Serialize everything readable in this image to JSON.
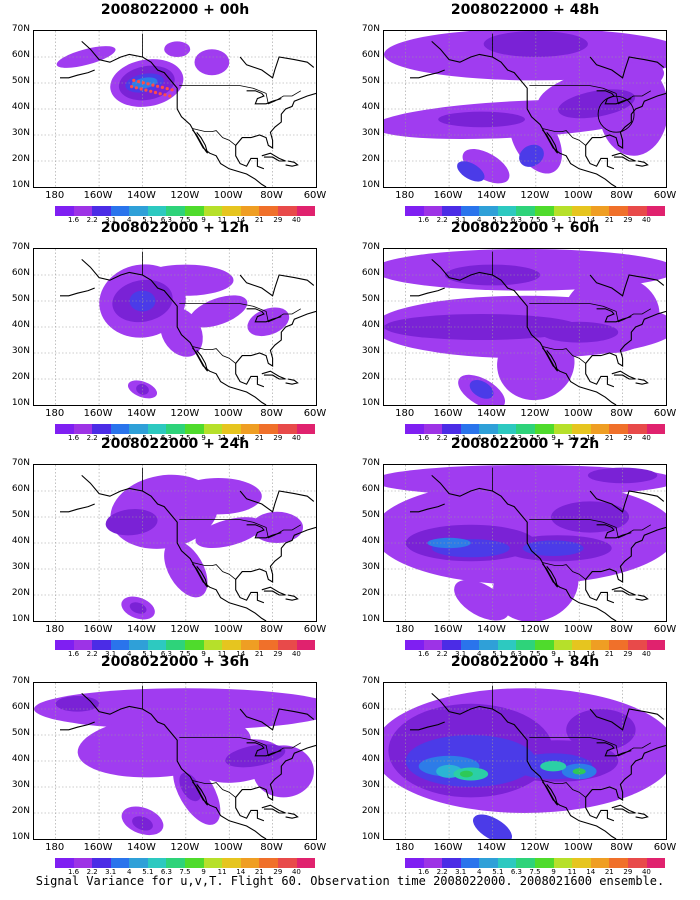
{
  "panels": [
    {
      "title": "2008022000 + 00h"
    },
    {
      "title": "2008022000 + 48h"
    },
    {
      "title": "2008022000 + 12h"
    },
    {
      "title": "2008022000 + 60h"
    },
    {
      "title": "2008022000 + 24h"
    },
    {
      "title": "2008022000 + 72h"
    },
    {
      "title": "2008022000 + 36h"
    },
    {
      "title": "2008022000 + 84h"
    }
  ],
  "axes": {
    "lat_labels": [
      "70N",
      "60N",
      "50N",
      "40N",
      "30N",
      "20N",
      "10N"
    ],
    "lon_labels": [
      "180",
      "160W",
      "140W",
      "120W",
      "100W",
      "80W",
      "60W"
    ]
  },
  "colorbar": {
    "labels": [
      "1.6",
      "2.2",
      "3.1",
      "4",
      "5.1",
      "6.3",
      "7.5",
      "9",
      "11",
      "14",
      "21",
      "29",
      "40"
    ],
    "colors": [
      "#7f1ff2",
      "#9d33e6",
      "#4b2ce6",
      "#2a74ec",
      "#2fa0d8",
      "#2dc9c0",
      "#2ed37a",
      "#4fdb2c",
      "#b6e02a",
      "#e6c51f",
      "#ef9e23",
      "#f0702a",
      "#e84a4a",
      "#e0226e"
    ]
  },
  "footer": "Signal Variance for u,v,T. Flight 60. Observation time 2008022000. 2008021600 ensemble.",
  "legend_colors": {
    "level1": "#a03cf0",
    "level2": "#7a22d6",
    "level3": "#4b3be8",
    "level4": "#2d7ce8",
    "level5": "#2bb5d4",
    "level6": "#2bcfa6",
    "level7": "#2ec957",
    "observations": "#ff4a4a"
  }
}
